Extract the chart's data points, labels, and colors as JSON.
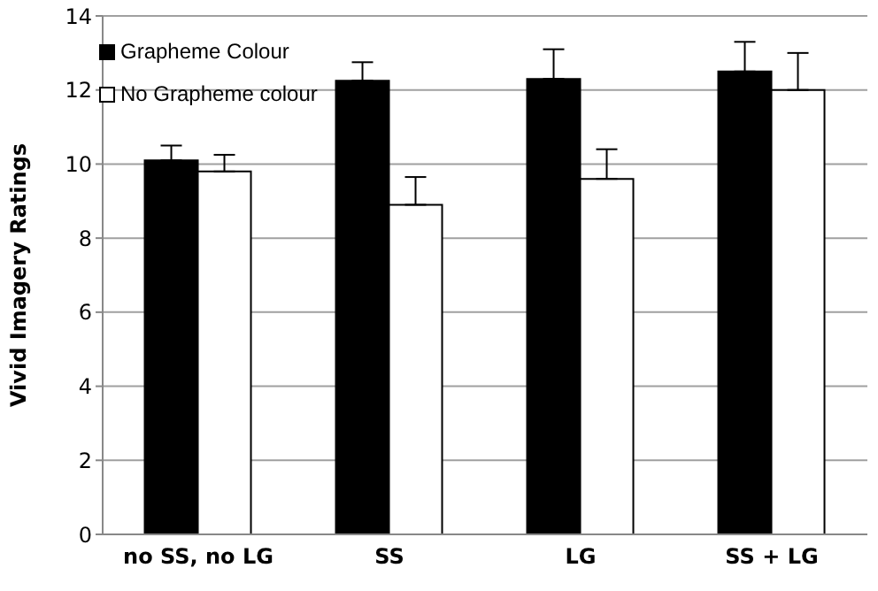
{
  "chart_data": {
    "type": "bar",
    "ylabel": "Vivid Imagery Ratings",
    "categories": [
      "no SS, no LG",
      "SS",
      "LG",
      "SS + LG"
    ],
    "series": [
      {
        "name": "Grapheme Colour",
        "color": "#000000",
        "values": [
          10.1,
          12.25,
          12.3,
          12.5
        ],
        "errors": [
          [
            10.1,
            10.5
          ],
          [
            12.25,
            12.75
          ],
          [
            12.3,
            13.1
          ],
          [
            12.5,
            13.3
          ]
        ]
      },
      {
        "name": "No Grapheme colour",
        "color": "#ffffff",
        "values": [
          9.8,
          8.9,
          9.6,
          12.0
        ],
        "errors": [
          [
            9.8,
            10.25
          ],
          [
            8.9,
            9.65
          ],
          [
            9.6,
            10.4
          ],
          [
            12.0,
            13.0
          ]
        ]
      }
    ],
    "ylim": [
      0,
      14
    ],
    "yticks": [
      0,
      2,
      4,
      6,
      8,
      10,
      12,
      14
    ],
    "grid": "y",
    "legend": "top left"
  }
}
